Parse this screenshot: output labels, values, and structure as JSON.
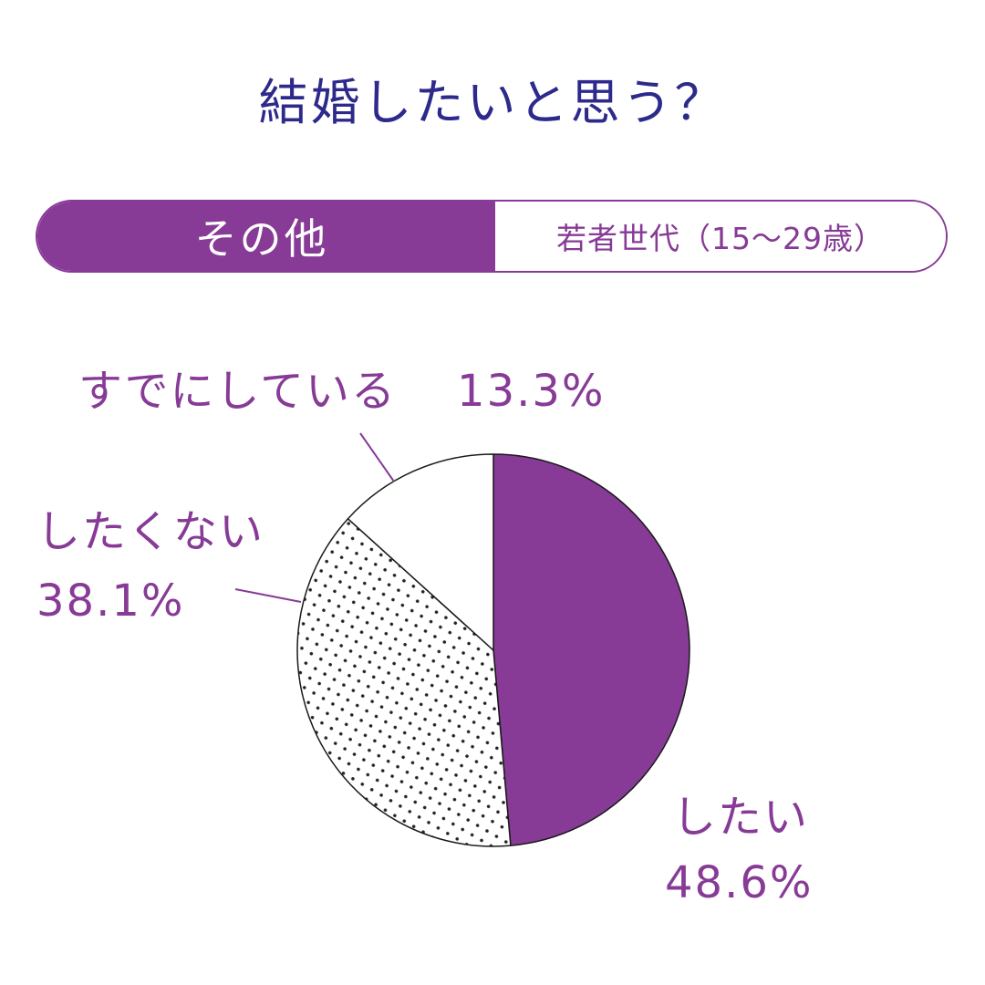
{
  "title": "結婚したいと思う？",
  "tabs": [
    {
      "label": "その他",
      "active": true
    },
    {
      "label": "若者世代（15～29歳）",
      "active": false
    }
  ],
  "colors": {
    "accent": "#873a96",
    "title": "#2d2a8c",
    "stroke": "#1a1a1a",
    "dots": "#222222"
  },
  "chart_data": {
    "type": "pie",
    "slices": [
      {
        "label": "したい",
        "value": 48.6,
        "value_label": "48.6%",
        "fill": "solid-purple"
      },
      {
        "label": "したくない",
        "value": 38.1,
        "value_label": "38.1%",
        "fill": "dotted"
      },
      {
        "label": "すでにしている",
        "value": 13.3,
        "value_label": "13.3%",
        "fill": "white"
      }
    ],
    "start_angle": "12 o'clock",
    "direction": "clockwise"
  }
}
